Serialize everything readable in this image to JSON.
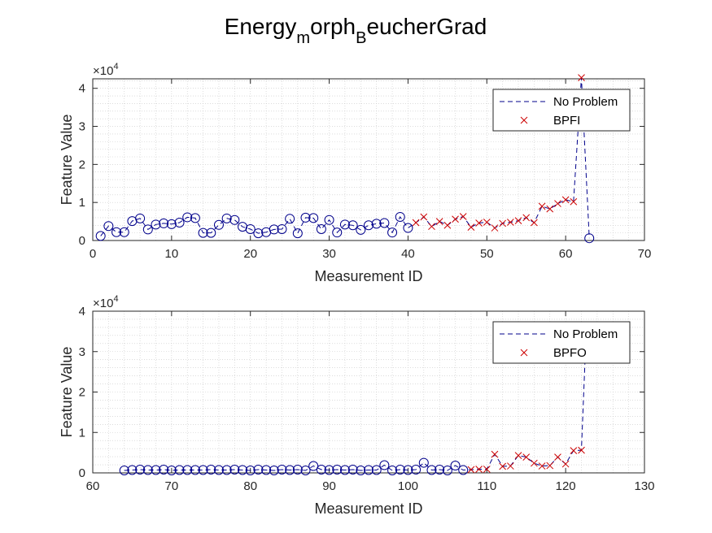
{
  "title": {
    "base1": "Energy",
    "sub1": "m",
    "base2": "orph",
    "sub2": "B",
    "base3": "eucherGrad"
  },
  "colors": {
    "line": "#00008B",
    "circle": "#00008B",
    "cross": "#CC0000",
    "grid": "#c8c8c8",
    "axis": "#262626"
  },
  "chart_data": [
    {
      "type": "line",
      "xlabel": "Measurement ID",
      "ylabel": "Feature Value",
      "exponent_label": "×10",
      "exponent_power": "4",
      "xlim": [
        0,
        70
      ],
      "ylim": [
        0,
        42500
      ],
      "xticks": [
        0,
        10,
        20,
        30,
        40,
        50,
        60,
        70
      ],
      "yticks": [
        0,
        10000,
        20000,
        30000,
        40000
      ],
      "ytick_labels": [
        "0",
        "1",
        "2",
        "3",
        "4"
      ],
      "grid": "minor-dotted",
      "legend": {
        "position": "top-right",
        "entries": [
          "No Problem",
          "BPFI"
        ]
      },
      "line": {
        "x": [
          1,
          2,
          3,
          4,
          5,
          6,
          7,
          8,
          9,
          10,
          11,
          12,
          13,
          14,
          15,
          16,
          17,
          18,
          19,
          20,
          21,
          22,
          23,
          24,
          25,
          26,
          27,
          28,
          29,
          30,
          31,
          32,
          33,
          34,
          35,
          36,
          37,
          38,
          39,
          40,
          41,
          42,
          43,
          44,
          45,
          46,
          47,
          48,
          49,
          50,
          51,
          52,
          53,
          54,
          55,
          56,
          57,
          58,
          59,
          60,
          61,
          62,
          63
        ],
        "y": [
          1200,
          3800,
          2200,
          2200,
          5100,
          5800,
          2900,
          4200,
          4500,
          4300,
          4700,
          6100,
          5900,
          2000,
          2000,
          4100,
          5800,
          5400,
          3600,
          3000,
          1900,
          2200,
          2900,
          3000,
          5700,
          1900,
          6000,
          5900,
          3000,
          5400,
          2100,
          4200,
          4000,
          2800,
          4000,
          4400,
          4600,
          2100,
          6200,
          3300,
          4700,
          6200,
          3700,
          5000,
          4000,
          5600,
          6300,
          3500,
          4600,
          4800,
          3300,
          4500,
          4800,
          5200,
          6000,
          4700,
          9000,
          8300,
          9700,
          10700,
          10200,
          42800,
          600
        ]
      },
      "circles": {
        "x": [
          1,
          2,
          3,
          4,
          5,
          6,
          7,
          8,
          9,
          10,
          11,
          12,
          13,
          14,
          15,
          16,
          17,
          18,
          19,
          20,
          21,
          22,
          23,
          24,
          25,
          26,
          27,
          28,
          29,
          30,
          31,
          32,
          33,
          34,
          35,
          36,
          37,
          38,
          39,
          40,
          63
        ],
        "y": [
          1200,
          3800,
          2200,
          2200,
          5100,
          5800,
          2900,
          4200,
          4500,
          4300,
          4700,
          6100,
          5900,
          2000,
          2000,
          4100,
          5800,
          5400,
          3600,
          3000,
          1900,
          2200,
          2900,
          3000,
          5700,
          1900,
          6000,
          5900,
          3000,
          5400,
          2100,
          4200,
          4000,
          2800,
          4000,
          4400,
          4600,
          2100,
          6200,
          3300,
          600
        ]
      },
      "crosses": {
        "x": [
          41,
          42,
          43,
          44,
          45,
          46,
          47,
          48,
          49,
          50,
          51,
          52,
          53,
          54,
          55,
          56,
          57,
          58,
          59,
          60,
          61,
          62
        ],
        "y": [
          4700,
          6200,
          3700,
          5000,
          4000,
          5600,
          6300,
          3500,
          4600,
          4800,
          3300,
          4500,
          4800,
          5200,
          6000,
          4700,
          9000,
          8300,
          9700,
          10700,
          10200,
          42800
        ]
      }
    },
    {
      "type": "line",
      "xlabel": "Measurement ID",
      "ylabel": "Feature Value",
      "exponent_label": "×10",
      "exponent_power": "4",
      "xlim": [
        60,
        130
      ],
      "ylim": [
        0,
        40000
      ],
      "xticks": [
        60,
        70,
        80,
        90,
        100,
        110,
        120,
        130
      ],
      "yticks": [
        0,
        10000,
        20000,
        30000,
        40000
      ],
      "ytick_labels": [
        "0",
        "1",
        "2",
        "3",
        "4"
      ],
      "grid": "minor-dotted",
      "legend": {
        "position": "top-right",
        "entries": [
          "No Problem",
          "BPFO"
        ]
      },
      "line": {
        "x": [
          64,
          65,
          66,
          67,
          68,
          69,
          70,
          71,
          72,
          73,
          74,
          75,
          76,
          77,
          78,
          79,
          80,
          81,
          82,
          83,
          84,
          85,
          86,
          87,
          88,
          89,
          90,
          91,
          92,
          93,
          94,
          95,
          96,
          97,
          98,
          99,
          100,
          101,
          102,
          103,
          104,
          105,
          106,
          107,
          108,
          109,
          110,
          111,
          112,
          113,
          114,
          115,
          116,
          117,
          118,
          119,
          120,
          121,
          122,
          122.5
        ],
        "y": [
          600,
          700,
          800,
          700,
          700,
          800,
          600,
          700,
          700,
          700,
          700,
          800,
          700,
          700,
          800,
          700,
          600,
          800,
          700,
          600,
          800,
          700,
          800,
          600,
          1700,
          800,
          700,
          800,
          700,
          800,
          600,
          700,
          700,
          1900,
          600,
          800,
          700,
          800,
          2500,
          700,
          800,
          600,
          1800,
          700,
          800,
          900,
          900,
          4600,
          1600,
          1700,
          4300,
          3900,
          2400,
          1700,
          1800,
          3900,
          2200,
          5500,
          5600,
          30000
        ]
      },
      "circles": {
        "x": [
          64,
          65,
          66,
          67,
          68,
          69,
          70,
          71,
          72,
          73,
          74,
          75,
          76,
          77,
          78,
          79,
          80,
          81,
          82,
          83,
          84,
          85,
          86,
          87,
          88,
          89,
          90,
          91,
          92,
          93,
          94,
          95,
          96,
          97,
          98,
          99,
          100,
          101,
          102,
          103,
          104,
          105,
          106,
          107
        ],
        "y": [
          600,
          700,
          800,
          700,
          700,
          800,
          600,
          700,
          700,
          700,
          700,
          800,
          700,
          700,
          800,
          700,
          600,
          800,
          700,
          600,
          800,
          700,
          800,
          600,
          1700,
          800,
          700,
          800,
          700,
          800,
          600,
          700,
          700,
          1900,
          600,
          800,
          700,
          800,
          2500,
          700,
          800,
          600,
          1800,
          700
        ]
      },
      "crosses": {
        "x": [
          108,
          109,
          110,
          111,
          112,
          113,
          114,
          115,
          116,
          117,
          118,
          119,
          120,
          121,
          122
        ],
        "y": [
          800,
          900,
          900,
          4600,
          1600,
          1700,
          4300,
          3900,
          2400,
          1700,
          1800,
          3900,
          2200,
          5500,
          5600
        ]
      }
    }
  ]
}
